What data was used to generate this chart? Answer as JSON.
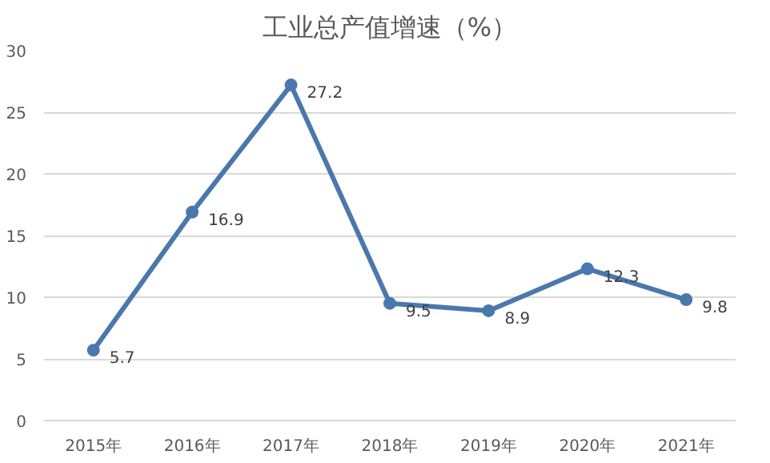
{
  "chart_data": {
    "type": "line",
    "title": "工业总产值增速（%）",
    "categories": [
      "2015年",
      "2016年",
      "2017年",
      "2018年",
      "2019年",
      "2020年",
      "2021年"
    ],
    "series": [
      {
        "color": "#4a78ad",
        "values": [
          5.7,
          16.9,
          27.2,
          9.5,
          8.9,
          12.3,
          9.8
        ]
      }
    ],
    "ylim": [
      0,
      30
    ],
    "yticks": [
      0,
      5,
      10,
      15,
      20,
      25,
      30
    ],
    "grid": "y",
    "marker": "circle",
    "line_style": "solid",
    "data_labels": true
  }
}
